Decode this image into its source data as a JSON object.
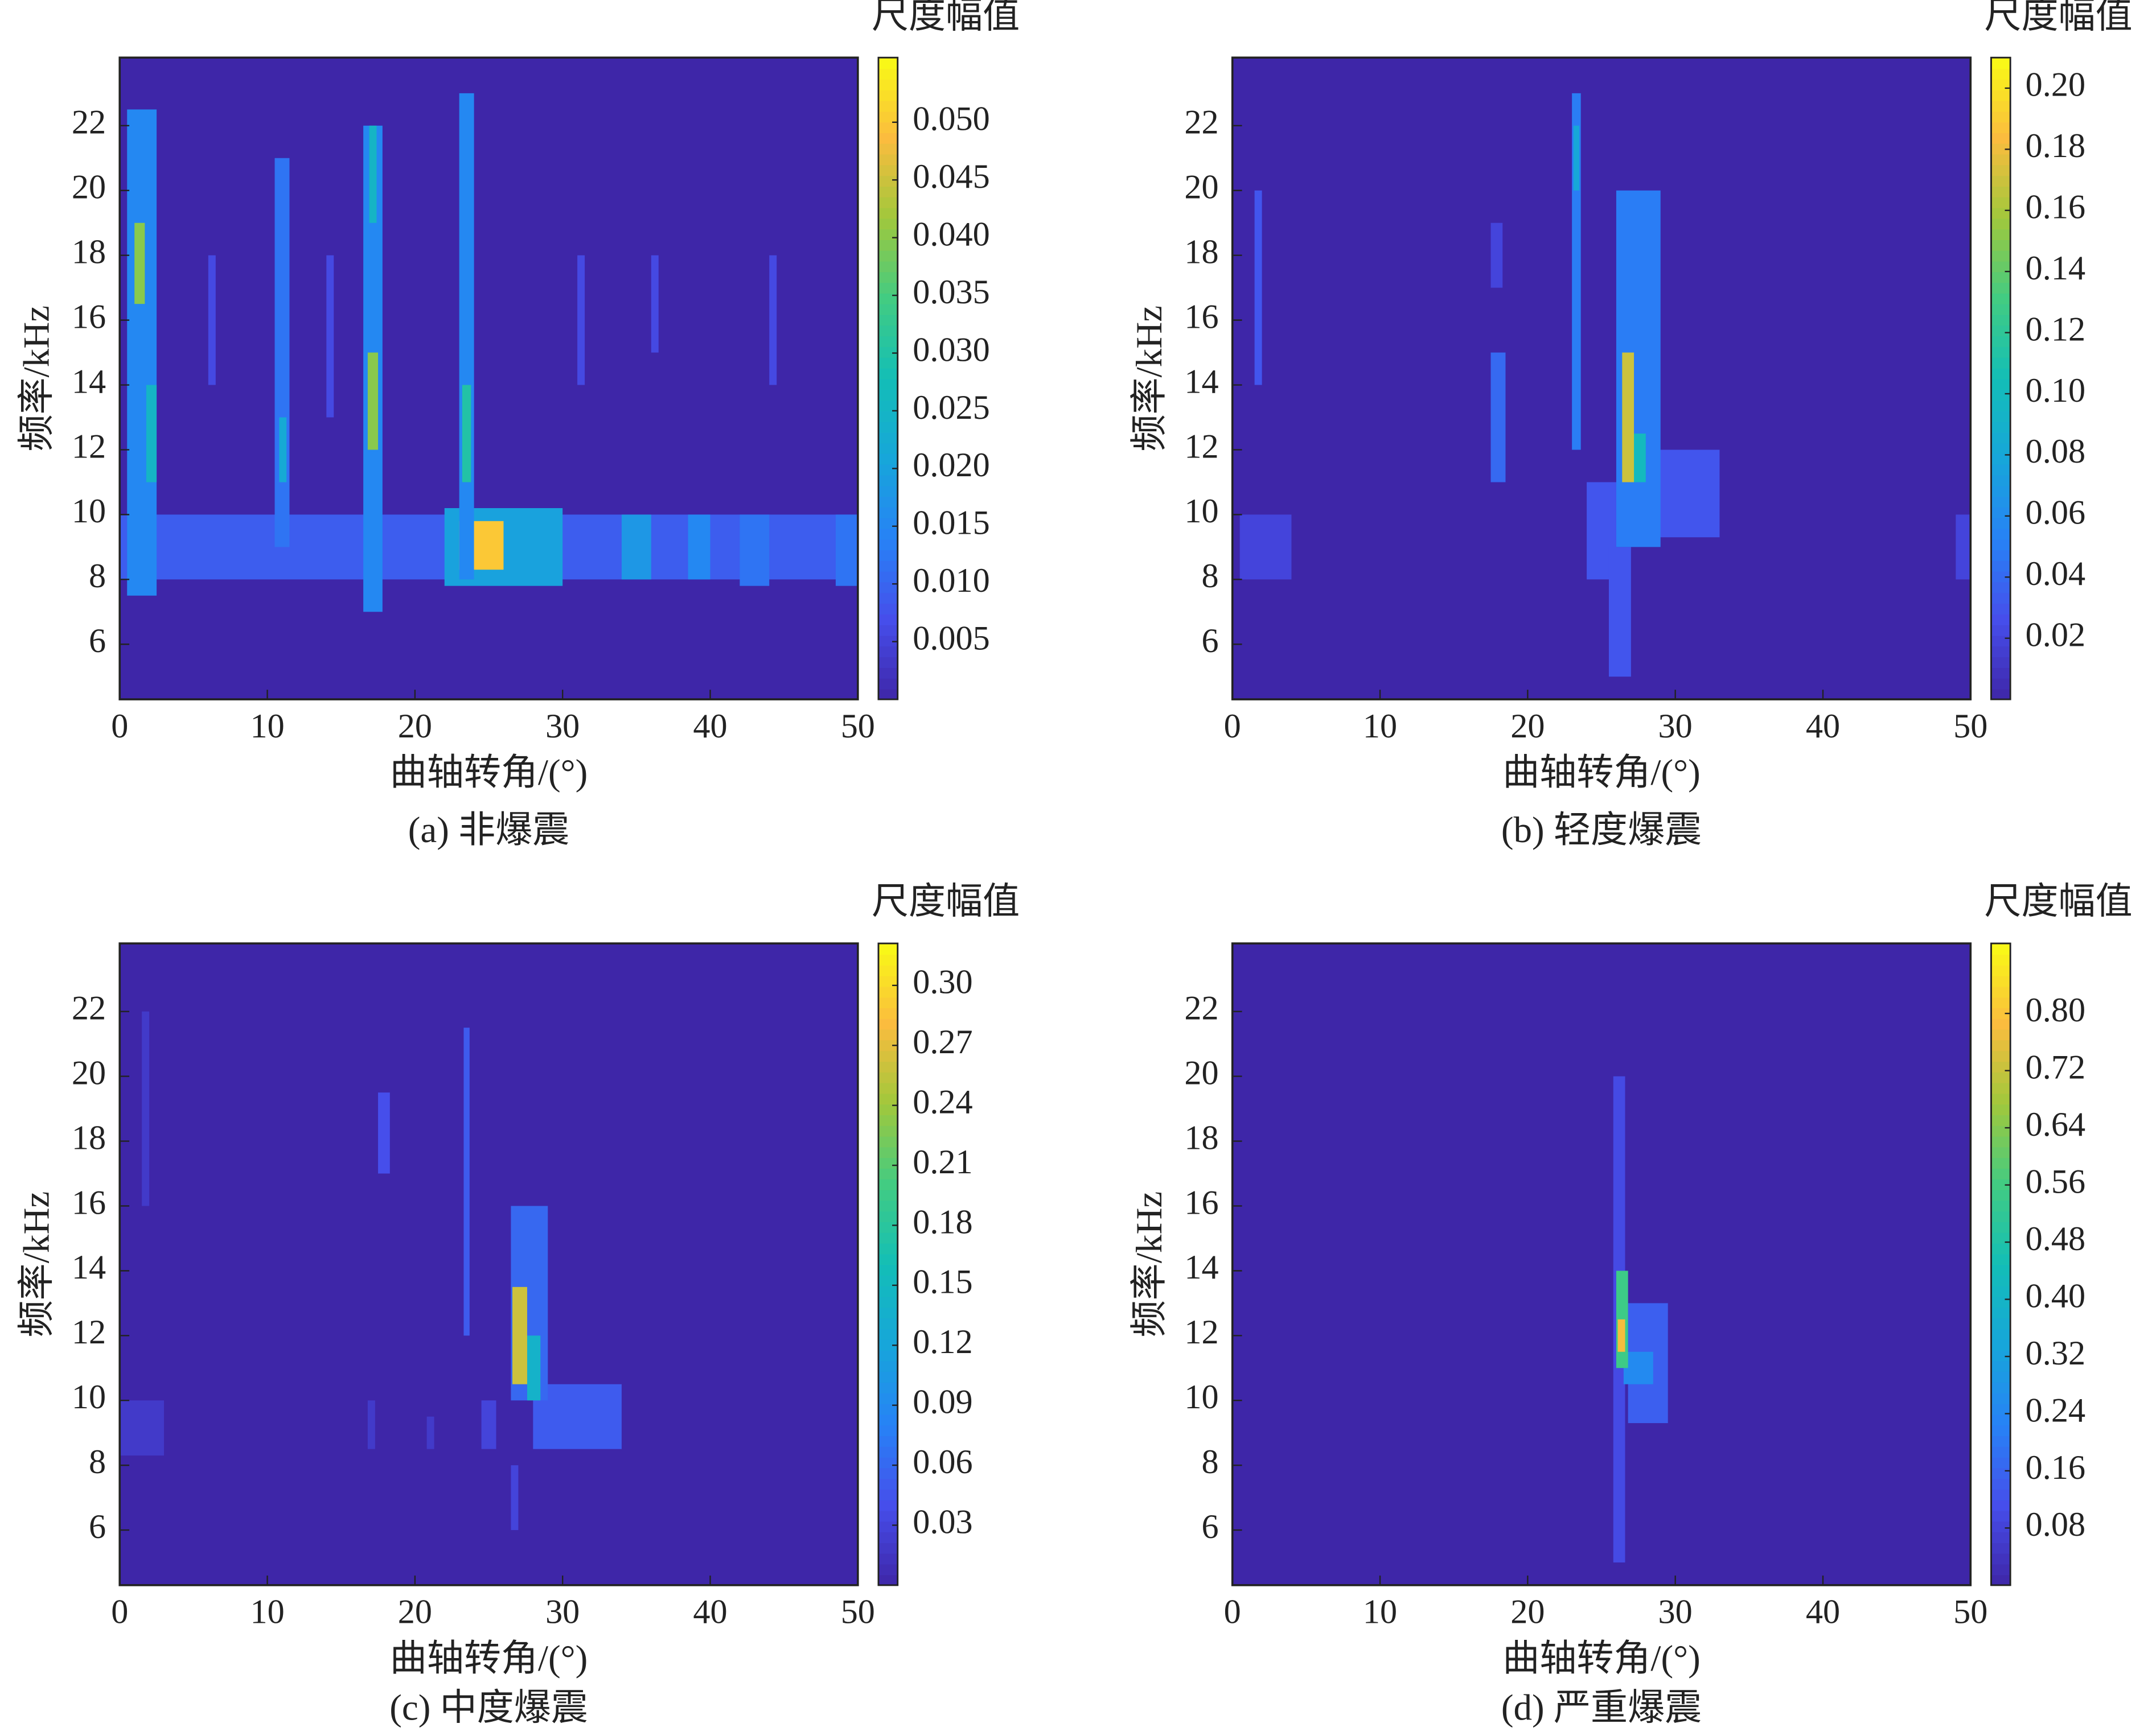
{
  "chart_data": [
    {
      "type": "heatmap",
      "title": "(a) 非爆震",
      "xlabel": "曲轴转角/(°)",
      "ylabel": "频率/kHz",
      "colorbar_label": "尺度幅值",
      "colormap": "parula",
      "xlim": [
        0,
        50
      ],
      "xticks": [
        0,
        10,
        20,
        30,
        40,
        50
      ],
      "ylim": [
        4.3,
        24.1
      ],
      "yticks": [
        6,
        8,
        10,
        12,
        14,
        16,
        18,
        20,
        22
      ],
      "clim": [
        0,
        0.0556
      ],
      "cticks": [
        {
          "value": 0.005,
          "label": "0.005"
        },
        {
          "value": 0.01,
          "label": "0.010"
        },
        {
          "value": 0.015,
          "label": "0.015"
        },
        {
          "value": 0.02,
          "label": "0.020"
        },
        {
          "value": 0.025,
          "label": "0.025"
        },
        {
          "value": 0.03,
          "label": "0.030"
        },
        {
          "value": 0.035,
          "label": "0.035"
        },
        {
          "value": 0.04,
          "label": "0.040"
        },
        {
          "value": 0.045,
          "label": "0.045"
        },
        {
          "value": 0.05,
          "label": "0.050"
        }
      ],
      "cells": [
        {
          "x": [
            0,
            50
          ],
          "y": [
            8,
            10
          ],
          "value": 0.009
        },
        {
          "x": [
            22,
            30
          ],
          "y": [
            7.8,
            10.2
          ],
          "value": 0.02
        },
        {
          "x": [
            23,
            26
          ],
          "y": [
            8.3,
            9.8
          ],
          "value": 0.05
        },
        {
          "x": [
            0.5,
            2.5
          ],
          "y": [
            7.5,
            22.5
          ],
          "value": 0.015
        },
        {
          "x": [
            1,
            1.7
          ],
          "y": [
            16.5,
            19
          ],
          "value": 0.04
        },
        {
          "x": [
            1.8,
            2.5
          ],
          "y": [
            11,
            14
          ],
          "value": 0.025
        },
        {
          "x": [
            10.5,
            11.5
          ],
          "y": [
            9,
            21
          ],
          "value": 0.012
        },
        {
          "x": [
            10.8,
            11.3
          ],
          "y": [
            11,
            13
          ],
          "value": 0.022
        },
        {
          "x": [
            16.5,
            17.8
          ],
          "y": [
            7,
            22
          ],
          "value": 0.015
        },
        {
          "x": [
            16.8,
            17.5
          ],
          "y": [
            12,
            15
          ],
          "value": 0.04
        },
        {
          "x": [
            16.9,
            17.4
          ],
          "y": [
            19,
            22
          ],
          "value": 0.025
        },
        {
          "x": [
            23,
            24
          ],
          "y": [
            8,
            23
          ],
          "value": 0.015
        },
        {
          "x": [
            23.2,
            23.8
          ],
          "y": [
            11,
            14
          ],
          "value": 0.03
        },
        {
          "x": [
            34,
            36
          ],
          "y": [
            8,
            10
          ],
          "value": 0.018
        },
        {
          "x": [
            38.5,
            40
          ],
          "y": [
            8,
            10
          ],
          "value": 0.015
        },
        {
          "x": [
            42,
            44
          ],
          "y": [
            7.8,
            10
          ],
          "value": 0.012
        },
        {
          "x": [
            48.5,
            50
          ],
          "y": [
            7.8,
            10
          ],
          "value": 0.012
        },
        {
          "x": [
            6,
            6.5
          ],
          "y": [
            14,
            18
          ],
          "value": 0.006
        },
        {
          "x": [
            14,
            14.5
          ],
          "y": [
            13,
            18
          ],
          "value": 0.006
        },
        {
          "x": [
            31,
            31.5
          ],
          "y": [
            14,
            18
          ],
          "value": 0.006
        },
        {
          "x": [
            36,
            36.5
          ],
          "y": [
            15,
            18
          ],
          "value": 0.006
        },
        {
          "x": [
            44,
            44.5
          ],
          "y": [
            14,
            18
          ],
          "value": 0.006
        }
      ]
    },
    {
      "type": "heatmap",
      "title": "(b) 轻度爆震",
      "xlabel": "曲轴转角/(°)",
      "ylabel": "频率/kHz",
      "colorbar_label": "尺度幅值",
      "colormap": "parula",
      "xlim": [
        0,
        50
      ],
      "xticks": [
        0,
        10,
        20,
        30,
        40,
        50
      ],
      "ylim": [
        4.3,
        24.1
      ],
      "yticks": [
        6,
        8,
        10,
        12,
        14,
        16,
        18,
        20,
        22
      ],
      "clim": [
        0,
        0.21
      ],
      "cticks": [
        {
          "value": 0.02,
          "label": "0.02"
        },
        {
          "value": 0.04,
          "label": "0.04"
        },
        {
          "value": 0.06,
          "label": "0.06"
        },
        {
          "value": 0.08,
          "label": "0.08"
        },
        {
          "value": 0.1,
          "label": "0.10"
        },
        {
          "value": 0.12,
          "label": "0.12"
        },
        {
          "value": 0.14,
          "label": "0.14"
        },
        {
          "value": 0.16,
          "label": "0.16"
        },
        {
          "value": 0.18,
          "label": "0.18"
        },
        {
          "value": 0.2,
          "label": "0.20"
        }
      ],
      "cells": [
        {
          "x": [
            0.5,
            4
          ],
          "y": [
            8,
            10
          ],
          "value": 0.02
        },
        {
          "x": [
            1.5,
            2
          ],
          "y": [
            14,
            20
          ],
          "value": 0.03
        },
        {
          "x": [
            17.5,
            18.5
          ],
          "y": [
            11,
            15
          ],
          "value": 0.04
        },
        {
          "x": [
            17.5,
            18.3
          ],
          "y": [
            17,
            19
          ],
          "value": 0.02
        },
        {
          "x": [
            23,
            23.6
          ],
          "y": [
            12,
            23
          ],
          "value": 0.05
        },
        {
          "x": [
            23.1,
            23.5
          ],
          "y": [
            20,
            22
          ],
          "value": 0.08
        },
        {
          "x": [
            24,
            26
          ],
          "y": [
            8,
            11
          ],
          "value": 0.03
        },
        {
          "x": [
            25.5,
            27
          ],
          "y": [
            5,
            9
          ],
          "value": 0.03
        },
        {
          "x": [
            27.5,
            33
          ],
          "y": [
            9.3,
            12
          ],
          "value": 0.03
        },
        {
          "x": [
            26,
            29
          ],
          "y": [
            9,
            20
          ],
          "value": 0.05
        },
        {
          "x": [
            27,
            28
          ],
          "y": [
            11,
            12.5
          ],
          "value": 0.1
        },
        {
          "x": [
            26.4,
            27.2
          ],
          "y": [
            11,
            15
          ],
          "value": 0.17
        },
        {
          "x": [
            49,
            50
          ],
          "y": [
            8,
            10
          ],
          "value": 0.02
        }
      ]
    },
    {
      "type": "heatmap",
      "title": "(c) 中度爆震",
      "xlabel": "曲轴转角/(°)",
      "ylabel": "频率/kHz",
      "colorbar_label": "尺度幅值",
      "colormap": "parula",
      "xlim": [
        0,
        50
      ],
      "xticks": [
        0,
        10,
        20,
        30,
        40,
        50
      ],
      "ylim": [
        4.3,
        24.1
      ],
      "yticks": [
        6,
        8,
        10,
        12,
        14,
        16,
        18,
        20,
        22
      ],
      "clim": [
        0,
        0.321
      ],
      "cticks": [
        {
          "value": 0.03,
          "label": "0.03"
        },
        {
          "value": 0.06,
          "label": "0.06"
        },
        {
          "value": 0.09,
          "label": "0.09"
        },
        {
          "value": 0.12,
          "label": "0.12"
        },
        {
          "value": 0.15,
          "label": "0.15"
        },
        {
          "value": 0.18,
          "label": "0.18"
        },
        {
          "value": 0.21,
          "label": "0.21"
        },
        {
          "value": 0.24,
          "label": "0.24"
        },
        {
          "value": 0.27,
          "label": "0.27"
        },
        {
          "value": 0.3,
          "label": "0.30"
        }
      ],
      "cells": [
        {
          "x": [
            0,
            3
          ],
          "y": [
            8.3,
            10
          ],
          "value": 0.02
        },
        {
          "x": [
            1.5,
            2
          ],
          "y": [
            16,
            22
          ],
          "value": 0.02
        },
        {
          "x": [
            17.5,
            18.3
          ],
          "y": [
            17,
            19.5
          ],
          "value": 0.04
        },
        {
          "x": [
            16.8,
            17.3
          ],
          "y": [
            8.5,
            10
          ],
          "value": 0.02
        },
        {
          "x": [
            20.8,
            21.3
          ],
          "y": [
            8.5,
            9.5
          ],
          "value": 0.02
        },
        {
          "x": [
            23.3,
            23.7
          ],
          "y": [
            12,
            21.5
          ],
          "value": 0.05
        },
        {
          "x": [
            24.5,
            25.5
          ],
          "y": [
            8.5,
            10
          ],
          "value": 0.03
        },
        {
          "x": [
            26.5,
            27
          ],
          "y": [
            6,
            8
          ],
          "value": 0.03
        },
        {
          "x": [
            28,
            34
          ],
          "y": [
            8.5,
            10.5
          ],
          "value": 0.05
        },
        {
          "x": [
            26.5,
            29
          ],
          "y": [
            10,
            16
          ],
          "value": 0.06
        },
        {
          "x": [
            27.6,
            28.5
          ],
          "y": [
            10,
            12
          ],
          "value": 0.14
        },
        {
          "x": [
            26.6,
            27.6
          ],
          "y": [
            10.5,
            13.5
          ],
          "value": 0.26
        }
      ]
    },
    {
      "type": "heatmap",
      "title": "(d) 严重爆震",
      "xlabel": "曲轴转角/(°)",
      "ylabel": "频率/kHz",
      "colorbar_label": "尺度幅值",
      "colormap": "parula",
      "xlim": [
        0,
        50
      ],
      "xticks": [
        0,
        10,
        20,
        30,
        40,
        50
      ],
      "ylim": [
        4.3,
        24.1
      ],
      "yticks": [
        6,
        8,
        10,
        12,
        14,
        16,
        18,
        20,
        22
      ],
      "clim": [
        0,
        0.898
      ],
      "cticks": [
        {
          "value": 0.08,
          "label": "0.08"
        },
        {
          "value": 0.16,
          "label": "0.16"
        },
        {
          "value": 0.24,
          "label": "0.24"
        },
        {
          "value": 0.32,
          "label": "0.32"
        },
        {
          "value": 0.4,
          "label": "0.40"
        },
        {
          "value": 0.48,
          "label": "0.48"
        },
        {
          "value": 0.56,
          "label": "0.56"
        },
        {
          "value": 0.64,
          "label": "0.64"
        },
        {
          "value": 0.72,
          "label": "0.72"
        },
        {
          "value": 0.8,
          "label": "0.80"
        }
      ],
      "cells": [
        {
          "x": [
            25.8,
            26.6
          ],
          "y": [
            5,
            20
          ],
          "value": 0.1
        },
        {
          "x": [
            26.8,
            29.5
          ],
          "y": [
            9.3,
            13
          ],
          "value": 0.15
        },
        {
          "x": [
            26.5,
            28.5
          ],
          "y": [
            10.5,
            11.5
          ],
          "value": 0.25
        },
        {
          "x": [
            26,
            26.8
          ],
          "y": [
            11,
            14
          ],
          "value": 0.55
        },
        {
          "x": [
            26.1,
            26.6
          ],
          "y": [
            11.5,
            12.5
          ],
          "value": 0.78
        }
      ]
    }
  ]
}
